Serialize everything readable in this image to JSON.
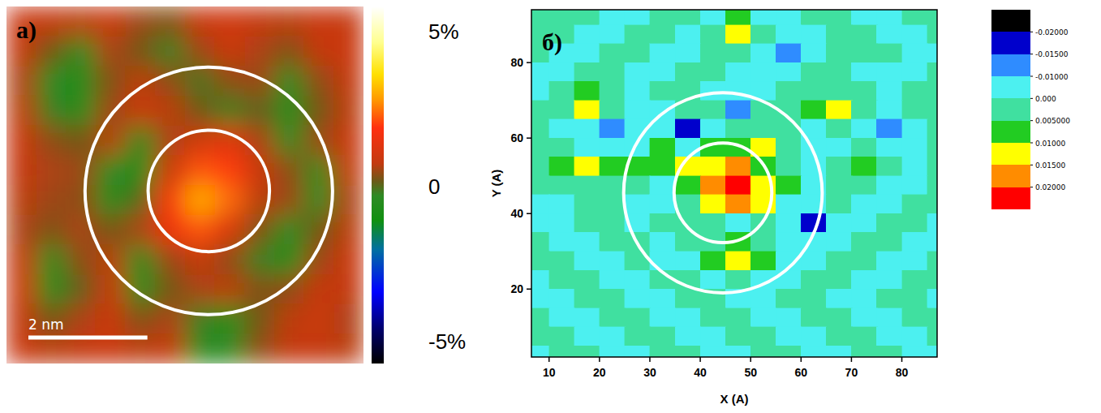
{
  "chart_data": [
    {
      "type": "heatmap",
      "title": "а)",
      "xlim": [
        0,
        6
      ],
      "ylim": [
        0,
        6
      ],
      "tick_labels": false,
      "x": [
        0.25,
        0.75,
        1.25,
        1.75,
        2.25,
        2.75,
        3.25,
        3.75,
        4.25,
        4.75,
        5.25,
        5.75
      ],
      "y": [
        5.75,
        5.25,
        4.75,
        4.25,
        3.75,
        3.25,
        2.75,
        2.25,
        1.75,
        1.25,
        0.75,
        0.25
      ],
      "values": [
        [
          0.9,
          0.8,
          0.7,
          0.9,
          0.5,
          0.3,
          0.9,
          1,
          0.8,
          0.7,
          0.9,
          0.8
        ],
        [
          0.8,
          0.2,
          -0.3,
          0.6,
          0.2,
          -0.2,
          0.5,
          0.9,
          0.6,
          0.3,
          0.8,
          0.9
        ],
        [
          0.6,
          -0.4,
          -0.6,
          0.3,
          0.7,
          0.4,
          -0.1,
          0.4,
          0.5,
          -0.3,
          0.4,
          0.8
        ],
        [
          0.7,
          -0.2,
          -0.5,
          0.5,
          0.9,
          0.7,
          0.2,
          -0.2,
          0.1,
          -0.5,
          0.2,
          0.7
        ],
        [
          0.9,
          0.4,
          0.2,
          0.7,
          -0.3,
          0.6,
          1,
          1.3,
          0.6,
          -0.3,
          0.5,
          0.9
        ],
        [
          0.8,
          0.6,
          0.5,
          -0.4,
          -0.6,
          0.9,
          2.2,
          2,
          0.9,
          0.4,
          -0.3,
          0.8
        ],
        [
          0.7,
          0.5,
          0.4,
          -0.5,
          0,
          1.8,
          3,
          2.4,
          0.7,
          0.5,
          -0.4,
          0.6
        ],
        [
          0.6,
          0.3,
          0.6,
          0.2,
          0.6,
          1.6,
          2.2,
          1.2,
          0.3,
          -0.4,
          0.2,
          0.7
        ],
        [
          0.8,
          -0.3,
          0.4,
          0.7,
          -0.4,
          0.5,
          0.8,
          0.4,
          -0.2,
          -0.6,
          0.5,
          0.9
        ],
        [
          0.9,
          -0.5,
          0.1,
          0.8,
          -0.5,
          0.2,
          0.6,
          0.7,
          0.3,
          0.4,
          0.8,
          0.8
        ],
        [
          0.8,
          0.2,
          0.6,
          0.9,
          0.3,
          0.6,
          -0.2,
          -0.5,
          0.2,
          0.7,
          0.9,
          0.6
        ],
        [
          0.9,
          0.7,
          0.8,
          0.9,
          0.7,
          0.8,
          -0.4,
          -0.3,
          0.4,
          0.8,
          0.8,
          0.7
        ]
      ],
      "colorbar": {
        "range": [
          -5.7,
          5.8
        ],
        "ticks": [
          {
            "value": 5,
            "label": "5%"
          },
          0,
          {
            "value": -5,
            "label": "-5%"
          }
        ]
      },
      "scale_bar": {
        "length": 2,
        "label": "2 nm"
      },
      "circles": [
        {
          "x": 3.4,
          "y": 2.9,
          "r": 1.02
        },
        {
          "x": 3.4,
          "y": 2.9,
          "r": 2.08
        }
      ]
    },
    {
      "type": "contour",
      "title": "б)",
      "x_label": "X (A)",
      "y_label": "Y (A)",
      "xlim": [
        6.5,
        87
      ],
      "ylim": [
        2,
        94
      ],
      "xticks": [
        10,
        20,
        30,
        40,
        50,
        60,
        70,
        80
      ],
      "yticks": [
        20,
        40,
        60,
        80
      ],
      "x": [
        7.5,
        12.5,
        17.5,
        22.5,
        27.5,
        32.5,
        37.5,
        42.5,
        47.5,
        52.5,
        57.5,
        62.5,
        67.5,
        72.5,
        77.5,
        82.5,
        87.5
      ],
      "y": [
        92.5,
        87.5,
        82.5,
        77.5,
        72.5,
        67.5,
        62.5,
        57.5,
        52.5,
        47.5,
        42.5,
        37.5,
        32.5,
        27.5,
        22.5,
        17.5,
        12.5,
        7.5,
        2.5
      ],
      "values": [
        [
          0.003,
          0.003,
          0.003,
          -0.004,
          -0.004,
          0.003,
          0.003,
          -0.004,
          0.006,
          -0.004,
          -0.004,
          0.003,
          0.003,
          -0.004,
          -0.004,
          0.003,
          0.003
        ],
        [
          0.003,
          0.003,
          -0.004,
          -0.004,
          0.003,
          0.003,
          -0.004,
          0.004,
          0.013,
          0.004,
          -0.004,
          -0.004,
          0.003,
          0.003,
          -0.004,
          -0.004,
          0.003
        ],
        [
          0.003,
          -0.004,
          -0.004,
          0.003,
          0.003,
          -0.004,
          -0.004,
          0.003,
          0.004,
          -0.004,
          -0.013,
          -0.004,
          0.003,
          0.003,
          0.003,
          -0.004,
          -0.004
        ],
        [
          -0.004,
          -0.004,
          0.003,
          0.003,
          -0.004,
          -0.004,
          0.003,
          0.003,
          -0.004,
          -0.004,
          -0.004,
          0.003,
          0.003,
          -0.004,
          -0.004,
          -0.004,
          0.003
        ],
        [
          -0.004,
          0.003,
          0.007,
          0.003,
          -0.004,
          0.003,
          0.003,
          -0.004,
          -0.006,
          -0.004,
          0.003,
          0.003,
          0.003,
          0.003,
          -0.004,
          0.003,
          0.003
        ],
        [
          0.003,
          0.004,
          0.012,
          0.004,
          -0.004,
          -0.004,
          0.003,
          0.004,
          -0.012,
          0.003,
          0.004,
          0.006,
          0.012,
          0.004,
          -0.004,
          0.003,
          0.003
        ],
        [
          0.003,
          -0.004,
          -0.004,
          -0.014,
          -0.004,
          -0.004,
          -0.016,
          -0.004,
          0.003,
          0.004,
          0.003,
          -0.004,
          0.003,
          -0.004,
          -0.013,
          -0.004,
          0.003
        ],
        [
          0.003,
          0.003,
          -0.004,
          -0.006,
          -0.004,
          0.007,
          -0.004,
          0.006,
          0.008,
          0.012,
          0.004,
          -0.004,
          -0.004,
          0.003,
          -0.004,
          -0.004,
          0.003
        ],
        [
          0.004,
          0.007,
          0.013,
          0.008,
          0.007,
          0.009,
          0.011,
          0.014,
          0.016,
          0.008,
          0.003,
          -0.004,
          0.003,
          0.007,
          0.003,
          -0.004,
          0.003
        ],
        [
          0.003,
          0.003,
          0.003,
          0.003,
          0.003,
          -0.004,
          0.006,
          0.017,
          0.022,
          0.014,
          0.005,
          -0.004,
          0.003,
          0.003,
          -0.004,
          -0.004,
          0.003
        ],
        [
          -0.004,
          -0.004,
          0.003,
          0.003,
          -0.004,
          -0.004,
          0.003,
          0.011,
          0.016,
          0.011,
          -0.004,
          -0.004,
          0.003,
          -0.004,
          -0.004,
          0.003,
          0.003
        ],
        [
          -0.004,
          -0.004,
          0.003,
          0.003,
          -0.004,
          0.003,
          0.003,
          0.004,
          -0.006,
          0.003,
          -0.01,
          -0.018,
          -0.004,
          -0.004,
          0.003,
          0.003,
          -0.004
        ],
        [
          0.003,
          -0.004,
          -0.004,
          0.003,
          0.003,
          -0.004,
          0.003,
          0.003,
          0.006,
          0.003,
          -0.004,
          -0.006,
          -0.004,
          0.003,
          0.003,
          -0.004,
          -0.004
        ],
        [
          0.003,
          0.003,
          -0.004,
          -0.004,
          0.003,
          -0.004,
          -0.004,
          0.008,
          0.014,
          0.006,
          -0.004,
          -0.004,
          0.003,
          0.003,
          -0.004,
          -0.004,
          0.003
        ],
        [
          -0.004,
          0.003,
          0.003,
          -0.004,
          -0.004,
          0.003,
          0.003,
          -0.004,
          0.003,
          -0.004,
          -0.004,
          0.003,
          0.003,
          -0.004,
          -0.004,
          0.003,
          0.003
        ],
        [
          -0.004,
          -0.004,
          0.003,
          0.003,
          -0.004,
          -0.004,
          0.003,
          0.003,
          -0.004,
          -0.004,
          0.003,
          0.003,
          -0.004,
          -0.004,
          0.003,
          0.003,
          -0.004
        ],
        [
          0.003,
          -0.004,
          -0.004,
          0.003,
          0.003,
          -0.004,
          -0.004,
          0.003,
          0.003,
          -0.004,
          -0.004,
          0.003,
          0.003,
          -0.004,
          -0.004,
          0.003,
          0.003
        ],
        [
          0.003,
          0.003,
          -0.004,
          -0.004,
          0.003,
          0.003,
          -0.004,
          -0.004,
          0.003,
          0.003,
          -0.004,
          -0.004,
          0.003,
          0.003,
          -0.004,
          -0.004,
          0.003
        ],
        [
          -0.004,
          0.003,
          0.003,
          -0.006,
          -0.004,
          0.003,
          0.003,
          -0.004,
          -0.004,
          0.003,
          0.003,
          -0.004,
          -0.004,
          0.003,
          0.003,
          -0.004,
          -0.004
        ]
      ],
      "colorbar": {
        "levels": [
          {
            "value": -0.02,
            "label": "-0.02000"
          },
          {
            "value": -0.015,
            "label": "-0.01500"
          },
          {
            "value": -0.01,
            "label": "-0.01000"
          },
          {
            "value": 0,
            "label": "0.000"
          },
          {
            "value": 0.005,
            "label": "0.005000"
          },
          {
            "value": 0.01,
            "label": "0.01000"
          },
          {
            "value": 0.015,
            "label": "0.01500"
          },
          {
            "value": 0.02,
            "label": "0.02000"
          }
        ]
      },
      "circles": [
        {
          "x": 44.5,
          "y": 45.5,
          "rx": 9.7,
          "ry": 13.2
        },
        {
          "x": 44.5,
          "y": 45.5,
          "rx": 19.7,
          "ry": 26.5
        }
      ]
    }
  ]
}
